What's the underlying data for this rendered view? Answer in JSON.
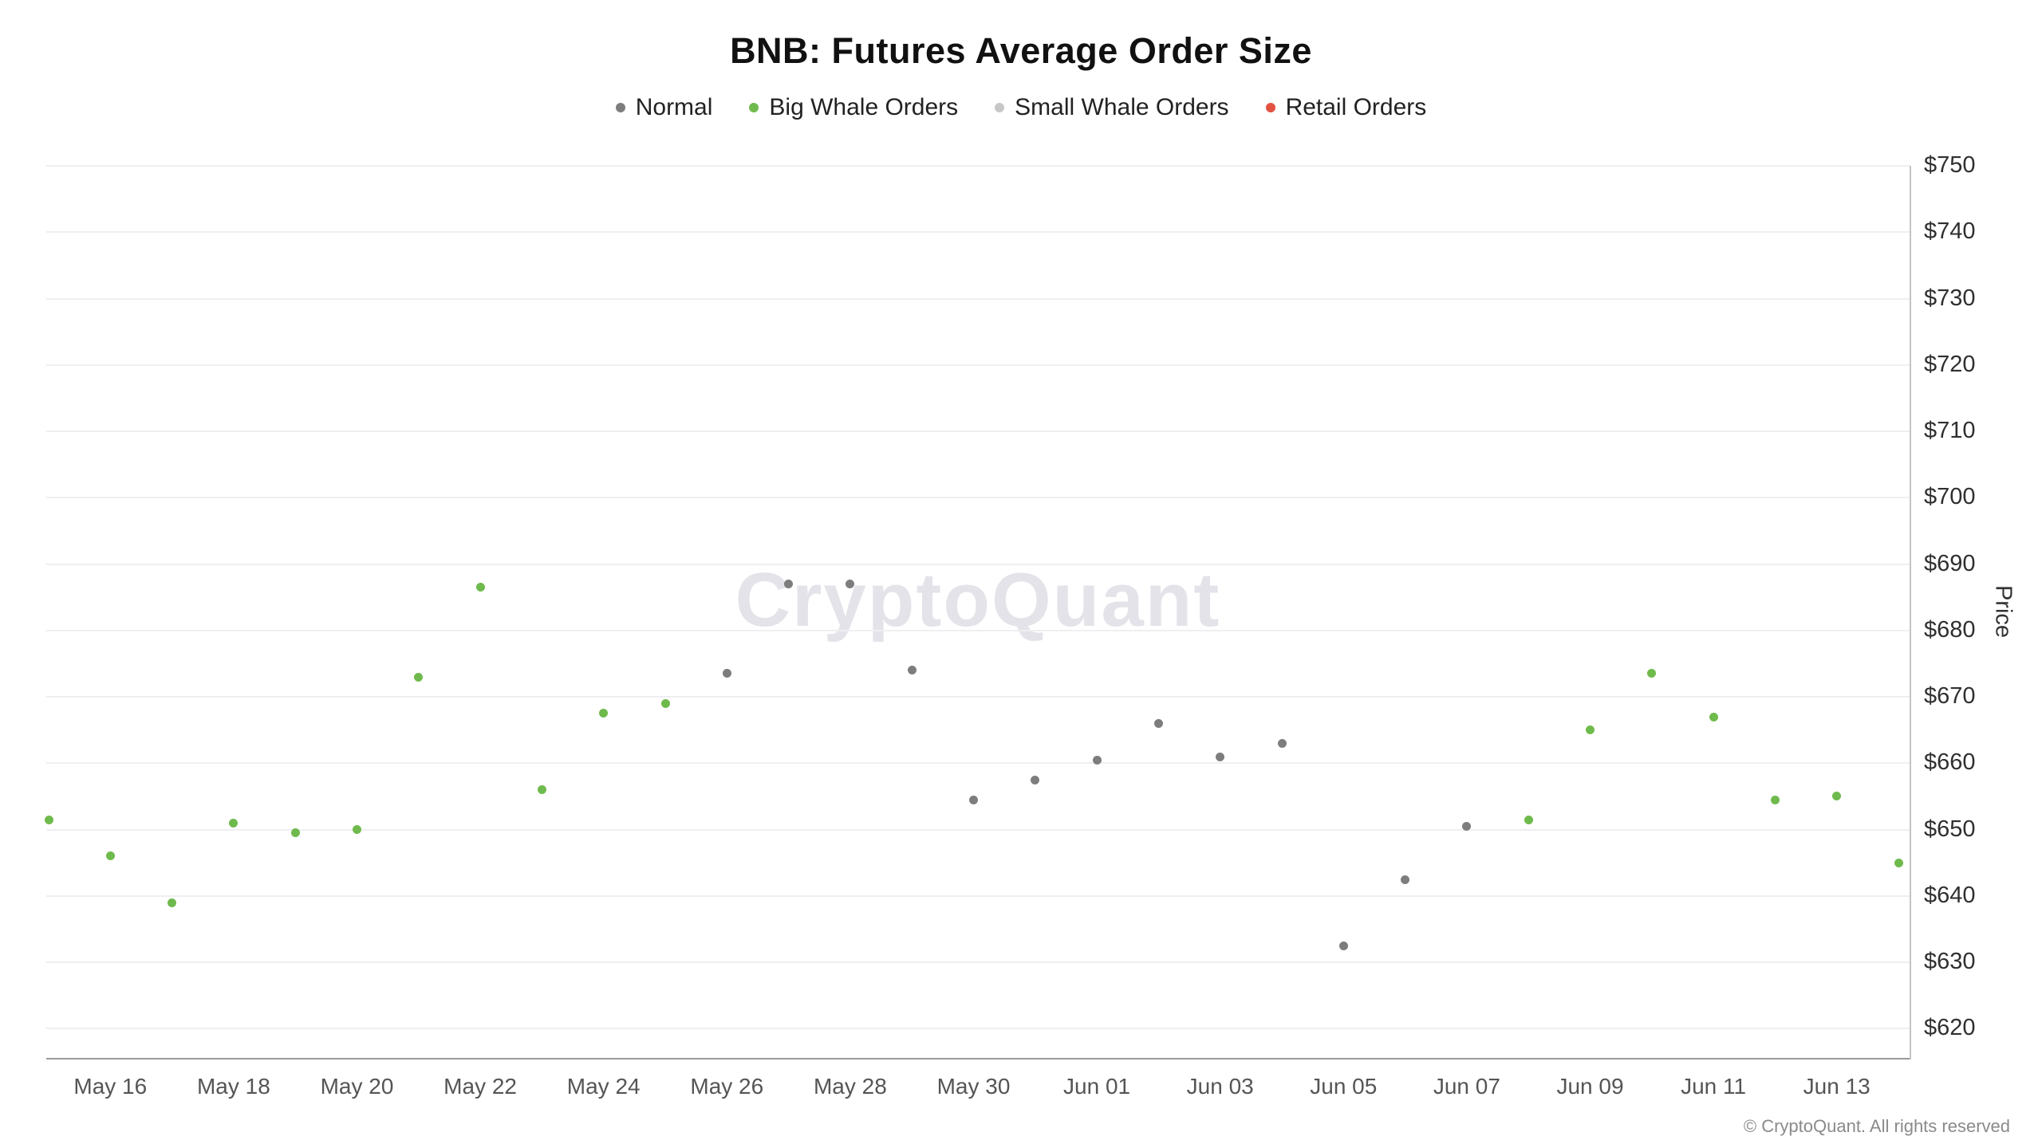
{
  "watermark": {
    "text": "CryptoQuant"
  },
  "footer": {
    "copyright": "© CryptoQuant. All rights reserved"
  },
  "chart_data": {
    "type": "scatter",
    "title": "BNB: Futures Average Order Size",
    "xlabel": "",
    "ylabel": "Price",
    "ylim": [
      615.6,
      750
    ],
    "grid": true,
    "legend_position": "top",
    "legend": [
      {
        "label": "Normal",
        "color": "#7d7d7d"
      },
      {
        "label": "Big Whale Orders",
        "color": "#6fba4c"
      },
      {
        "label": "Small Whale Orders",
        "color": "#c7c7c7"
      },
      {
        "label": "Retail Orders",
        "color": "#e15241"
      }
    ],
    "y_ticks": [
      {
        "value": 750,
        "label": "$750"
      },
      {
        "value": 740,
        "label": "$740"
      },
      {
        "value": 730,
        "label": "$730"
      },
      {
        "value": 720,
        "label": "$720"
      },
      {
        "value": 710,
        "label": "$710"
      },
      {
        "value": 700,
        "label": "$700"
      },
      {
        "value": 690,
        "label": "$690"
      },
      {
        "value": 680,
        "label": "$680"
      },
      {
        "value": 670,
        "label": "$670"
      },
      {
        "value": 660,
        "label": "$660"
      },
      {
        "value": 650,
        "label": "$650"
      },
      {
        "value": 640,
        "label": "$640"
      },
      {
        "value": 630,
        "label": "$630"
      },
      {
        "value": 620,
        "label": "$620"
      }
    ],
    "x_ticks": [
      {
        "index": 1,
        "label": "May 16"
      },
      {
        "index": 3,
        "label": "May 18"
      },
      {
        "index": 5,
        "label": "May 20"
      },
      {
        "index": 7,
        "label": "May 22"
      },
      {
        "index": 9,
        "label": "May 24"
      },
      {
        "index": 11,
        "label": "May 26"
      },
      {
        "index": 13,
        "label": "May 28"
      },
      {
        "index": 15,
        "label": "May 30"
      },
      {
        "index": 17,
        "label": "Jun 01"
      },
      {
        "index": 19,
        "label": "Jun 03"
      },
      {
        "index": 21,
        "label": "Jun 05"
      },
      {
        "index": 23,
        "label": "Jun 07"
      },
      {
        "index": 25,
        "label": "Jun 09"
      },
      {
        "index": 27,
        "label": "Jun 11"
      },
      {
        "index": 29,
        "label": "Jun 13"
      }
    ],
    "points": [
      {
        "date": "May 15",
        "value": 651.5,
        "series": "Big Whale Orders"
      },
      {
        "date": "May 16",
        "value": 646.0,
        "series": "Big Whale Orders"
      },
      {
        "date": "May 17",
        "value": 639.0,
        "series": "Big Whale Orders"
      },
      {
        "date": "May 18",
        "value": 651.0,
        "series": "Big Whale Orders"
      },
      {
        "date": "May 19",
        "value": 649.5,
        "series": "Big Whale Orders"
      },
      {
        "date": "May 20",
        "value": 650.0,
        "series": "Big Whale Orders"
      },
      {
        "date": "May 21",
        "value": 673.0,
        "series": "Big Whale Orders"
      },
      {
        "date": "May 22",
        "value": 686.5,
        "series": "Big Whale Orders"
      },
      {
        "date": "May 23",
        "value": 656.0,
        "series": "Big Whale Orders"
      },
      {
        "date": "May 24",
        "value": 667.5,
        "series": "Big Whale Orders"
      },
      {
        "date": "May 25",
        "value": 669.0,
        "series": "Big Whale Orders"
      },
      {
        "date": "May 26",
        "value": 673.5,
        "series": "Normal"
      },
      {
        "date": "May 27",
        "value": 687.0,
        "series": "Normal"
      },
      {
        "date": "May 28",
        "value": 687.0,
        "series": "Normal"
      },
      {
        "date": "May 29",
        "value": 674.0,
        "series": "Normal"
      },
      {
        "date": "May 30",
        "value": 654.5,
        "series": "Normal"
      },
      {
        "date": "May 31",
        "value": 657.5,
        "series": "Normal"
      },
      {
        "date": "Jun 01",
        "value": 660.5,
        "series": "Normal"
      },
      {
        "date": "Jun 02",
        "value": 666.0,
        "series": "Normal"
      },
      {
        "date": "Jun 03",
        "value": 661.0,
        "series": "Normal"
      },
      {
        "date": "Jun 04",
        "value": 663.0,
        "series": "Normal"
      },
      {
        "date": "Jun 05",
        "value": 632.5,
        "series": "Normal"
      },
      {
        "date": "Jun 06",
        "value": 642.5,
        "series": "Normal"
      },
      {
        "date": "Jun 07",
        "value": 650.5,
        "series": "Normal"
      },
      {
        "date": "Jun 08",
        "value": 651.5,
        "series": "Big Whale Orders"
      },
      {
        "date": "Jun 09",
        "value": 665.0,
        "series": "Big Whale Orders"
      },
      {
        "date": "Jun 10",
        "value": 673.5,
        "series": "Big Whale Orders"
      },
      {
        "date": "Jun 11",
        "value": 667.0,
        "series": "Big Whale Orders"
      },
      {
        "date": "Jun 12",
        "value": 654.5,
        "series": "Big Whale Orders"
      },
      {
        "date": "Jun 13",
        "value": 655.0,
        "series": "Big Whale Orders"
      },
      {
        "date": "Jun 14",
        "value": 645.0,
        "series": "Big Whale Orders"
      }
    ]
  }
}
